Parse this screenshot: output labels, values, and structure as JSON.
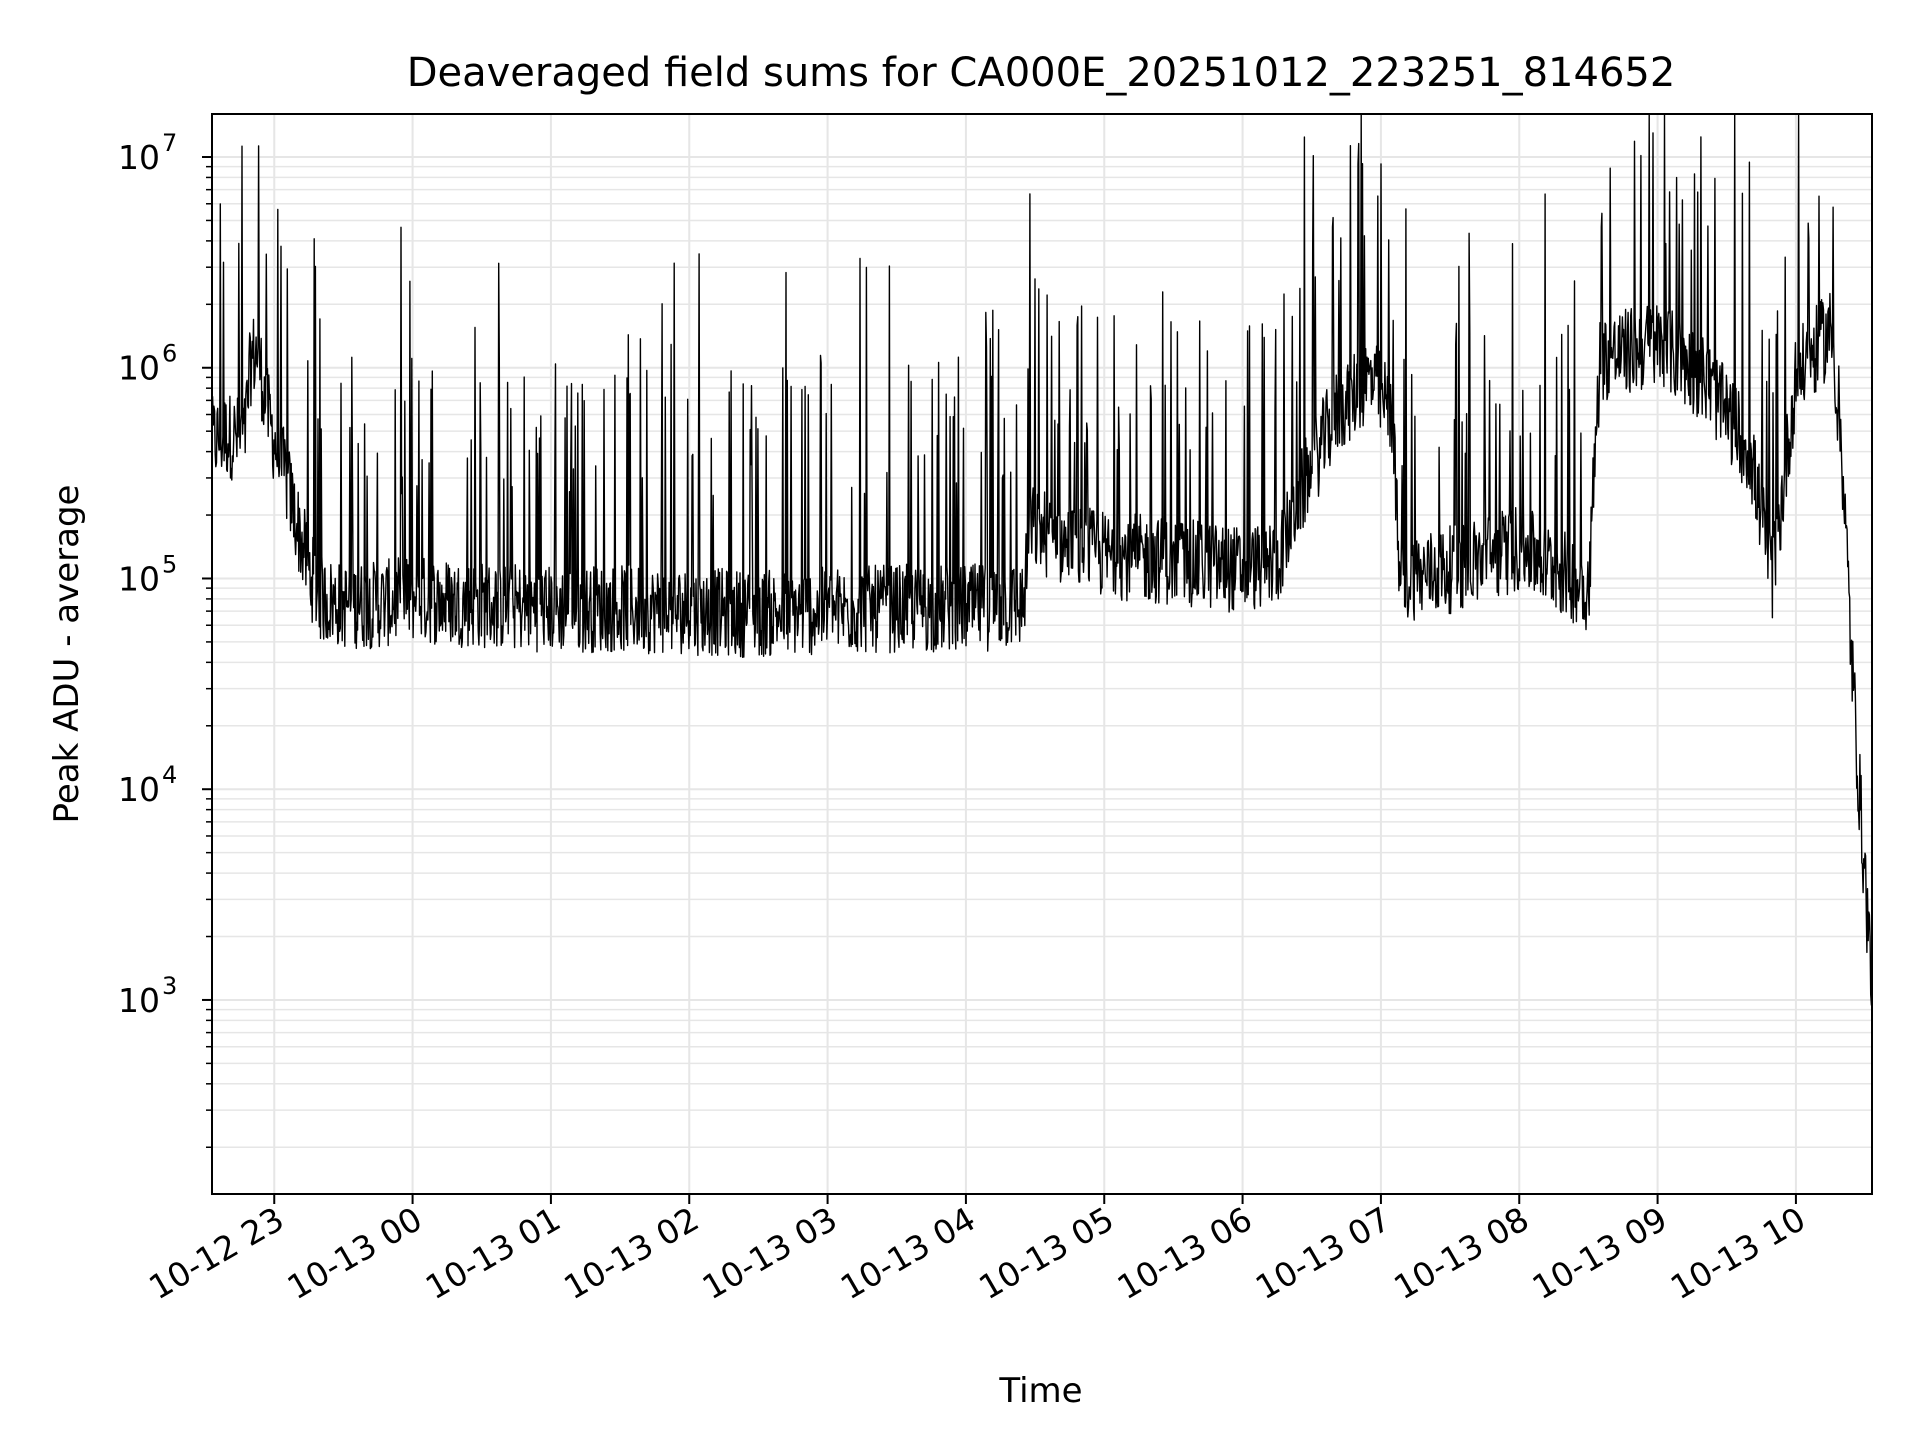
{
  "chart_data": {
    "type": "line",
    "title": "Deaveraged field sums for CA000E_20251012_223251_814652",
    "xlabel": "Time",
    "ylabel": "Peak ADU - average",
    "yscale": "log",
    "ylim": [
      120,
      16000000
    ],
    "xlim": [
      "2025-10-12 22:33",
      "2025-10-13 10:33"
    ],
    "grid": true,
    "line_color": "#000000",
    "grid_color": "#e6e6e6",
    "x_ticks": [
      {
        "value": "2025-10-12 23:00",
        "label": "10-12 23"
      },
      {
        "value": "2025-10-13 00:00",
        "label": "10-13 00"
      },
      {
        "value": "2025-10-13 01:00",
        "label": "10-13 01"
      },
      {
        "value": "2025-10-13 02:00",
        "label": "10-13 02"
      },
      {
        "value": "2025-10-13 03:00",
        "label": "10-13 03"
      },
      {
        "value": "2025-10-13 04:00",
        "label": "10-13 04"
      },
      {
        "value": "2025-10-13 05:00",
        "label": "10-13 05"
      },
      {
        "value": "2025-10-13 06:00",
        "label": "10-13 06"
      },
      {
        "value": "2025-10-13 07:00",
        "label": "10-13 07"
      },
      {
        "value": "2025-10-13 08:00",
        "label": "10-13 08"
      },
      {
        "value": "2025-10-13 09:00",
        "label": "10-13 09"
      },
      {
        "value": "2025-10-13 10:00",
        "label": "10-13 10"
      }
    ],
    "y_ticks": [
      {
        "value": 1000,
        "base": "10",
        "exp": "3"
      },
      {
        "value": 10000,
        "base": "10",
        "exp": "4"
      },
      {
        "value": 100000,
        "base": "10",
        "exp": "5"
      },
      {
        "value": 1000000,
        "base": "10",
        "exp": "6"
      },
      {
        "value": 10000000,
        "base": "10",
        "exp": "7"
      }
    ],
    "series": [
      {
        "x": [
          "2025-10-12 22:33",
          "2025-10-12 22:40",
          "2025-10-12 22:47",
          "2025-10-12 22:50",
          "2025-10-12 22:53",
          "2025-10-12 22:56",
          "2025-10-12 23:00",
          "2025-10-12 23:05",
          "2025-10-12 23:10",
          "2025-10-12 23:15",
          "2025-10-12 23:20",
          "2025-10-12 23:30",
          "2025-10-12 23:45",
          "2025-10-13 00:00",
          "2025-10-13 00:30",
          "2025-10-13 01:00",
          "2025-10-13 01:30",
          "2025-10-13 02:00",
          "2025-10-13 02:30",
          "2025-10-13 03:00",
          "2025-10-13 03:30",
          "2025-10-13 04:00",
          "2025-10-13 04:25",
          "2025-10-13 04:28",
          "2025-10-13 04:45",
          "2025-10-13 05:00",
          "2025-10-13 05:30",
          "2025-10-13 06:00",
          "2025-10-13 06:15",
          "2025-10-13 06:25",
          "2025-10-13 06:40",
          "2025-10-13 06:55",
          "2025-10-13 07:05",
          "2025-10-13 07:08",
          "2025-10-13 07:30",
          "2025-10-13 08:00",
          "2025-10-13 08:30",
          "2025-10-13 08:35",
          "2025-10-13 09:00",
          "2025-10-13 09:20",
          "2025-10-13 09:40",
          "2025-10-13 09:50",
          "2025-10-13 10:00",
          "2025-10-13 10:15",
          "2025-10-13 10:17",
          "2025-10-13 10:20",
          "2025-10-13 10:24",
          "2025-10-13 10:28",
          "2025-10-13 10:33"
        ],
        "y": [
          450000,
          480000,
          450000,
          1100000,
          1200000,
          700000,
          450000,
          300000,
          180000,
          110000,
          80000,
          75000,
          75000,
          80000,
          75000,
          72000,
          72000,
          70000,
          68000,
          70000,
          72000,
          72000,
          75000,
          180000,
          140000,
          130000,
          120000,
          110000,
          120000,
          250000,
          600000,
          900000,
          600000,
          100000,
          110000,
          140000,
          90000,
          1100000,
          1300000,
          900000,
          400000,
          100000,
          900000,
          1500000,
          1000000,
          400000,
          45000,
          8000,
          1200
        ]
      }
    ]
  }
}
